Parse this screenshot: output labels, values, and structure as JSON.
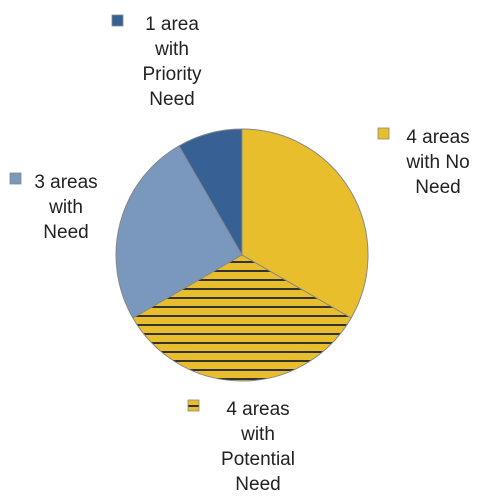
{
  "chart_data": {
    "type": "pie",
    "title": "",
    "start_angle_deg": 0,
    "direction": "clockwise",
    "slices": [
      {
        "label": "4 areas with No Need",
        "lines": [
          "4 areas",
          "with No",
          "Need"
        ],
        "value": 4,
        "color": "#E8BE2C",
        "pattern": "solid"
      },
      {
        "label": "4 areas with Potential Need",
        "lines": [
          "4 areas",
          "with",
          "Potential",
          "Need"
        ],
        "value": 4,
        "color": "#E8BE2C",
        "pattern": "horizontal-stripes"
      },
      {
        "label": "3 areas with Need",
        "lines": [
          "3 areas",
          "with",
          "Need"
        ],
        "value": 3,
        "color": "#7A98BE",
        "pattern": "solid"
      },
      {
        "label": "1 area with Priority Need",
        "lines": [
          "1 area",
          "with",
          "Priority",
          "Need"
        ],
        "value": 1,
        "color": "#376094",
        "pattern": "solid"
      }
    ],
    "stripe_color": "#333333",
    "slice_border_color": "#888888",
    "legend_placement": "labels-around-pie"
  }
}
